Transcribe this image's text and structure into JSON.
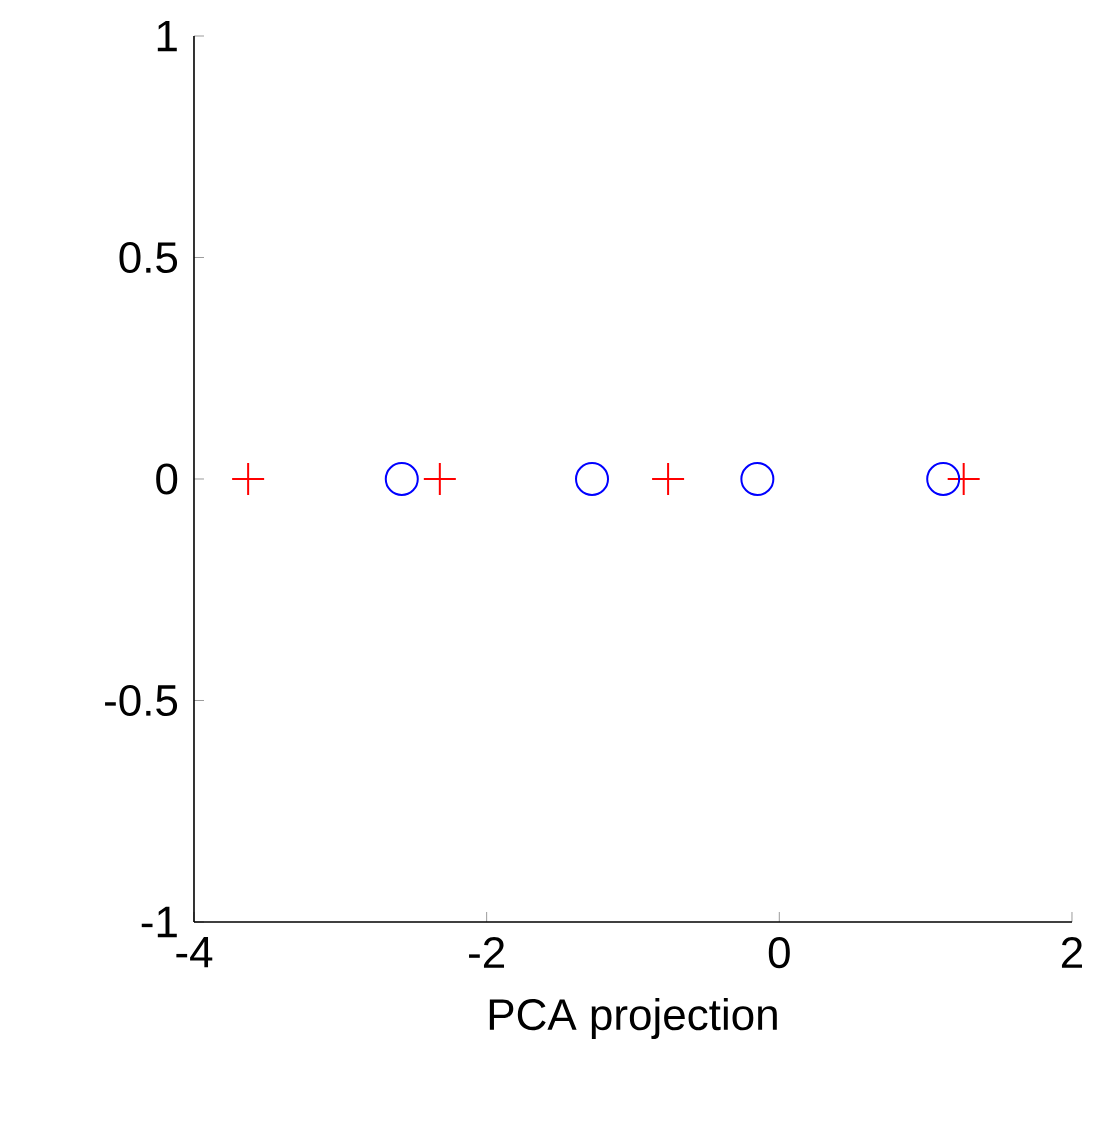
{
  "chart_data": {
    "type": "scatter",
    "xlabel": "PCA projection",
    "xlim": [
      -4,
      2
    ],
    "ylim": [
      -1,
      1
    ],
    "xticks": [
      -4,
      -2,
      0,
      2
    ],
    "yticks": [
      -1,
      -0.5,
      0,
      0.5,
      1
    ],
    "grid": false,
    "series": [
      {
        "color": "#ff0000",
        "marker": "cross",
        "x": [
          -3.63,
          -2.32,
          -0.76,
          1.26
        ],
        "values": [
          0,
          0,
          0,
          0
        ]
      },
      {
        "color": "#0000ff",
        "marker": "circle",
        "x": [
          -2.58,
          -1.28,
          -0.15,
          1.12
        ],
        "values": [
          0,
          0,
          0,
          0
        ]
      }
    ]
  }
}
